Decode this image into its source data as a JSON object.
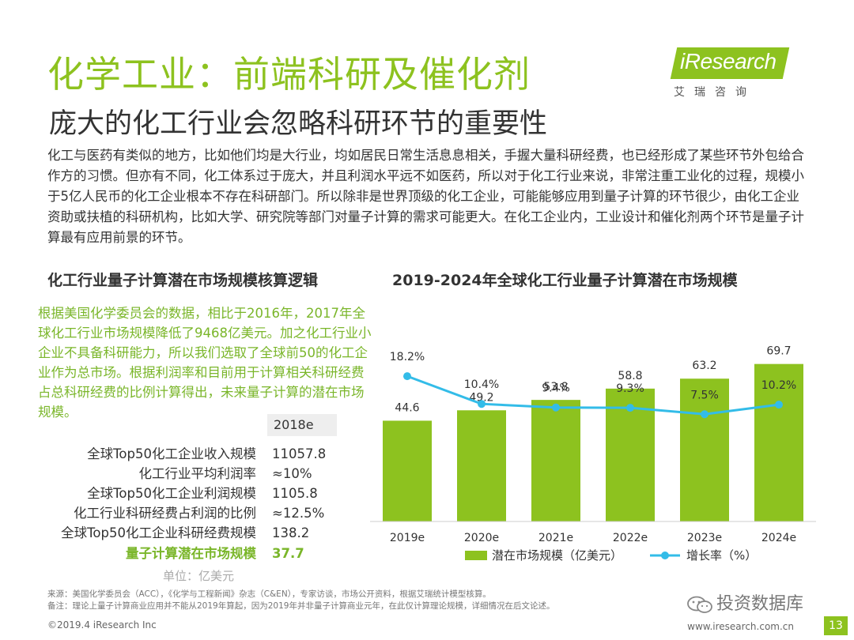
{
  "header": {
    "title": "化学工业：前端科研及催化剂",
    "subtitle": "庞大的化工行业会忽略科研环节的重要性"
  },
  "logo": {
    "word": "iResearch",
    "cn": "艾瑞咨询"
  },
  "intro": "化工与医药有类似的地方，比如他们均是大行业，均如居民日常生活息息相关，手握大量科研经费，也已经形成了某些环节外包给合作方的习惯。但亦有不同，化工体系过于庞大，并且利润水平远不如医药，所以对于化工行业来说，非常注重工业化的过程，规模小于5亿人民币的化工企业根本不存在科研部门。所以除非是世界顶级的化工企业，可能能够应用到量子计算的环节很少，由化工企业资助或扶植的科研机构，比如大学、研究院等部门对量子计算的需求可能更大。在化工企业内，工业设计和催化剂两个环节是量子计算最有应用前景的环节。",
  "left": {
    "heading": "化工行业量子计算潜在市场规模核算逻辑",
    "green_text": "根据美国化学委员会的数据，相比于2016年，2017年全球化工行业市场规模降低了9468亿美元。加之化工行业小企业不具备科研能力，所以我们选取了全球前50的化工企业作为总市场。根据利润率和目前用于计算相关科研经费占总科研经费的比例计算得出，未来量子计算的潜在市场规模。",
    "col_header": "2018e",
    "rows": [
      {
        "label": "全球Top50化工企业收入规模",
        "value": "11057.8"
      },
      {
        "label": "化工行业平均利润率",
        "value": "≈10%"
      },
      {
        "label": "全球Top50化工企业利润规模",
        "value": "1105.8"
      },
      {
        "label": "化工行业科研经费占利润的比例",
        "value": "≈12.5%"
      },
      {
        "label": "全球Top50化工企业科研经费规模",
        "value": "138.2"
      },
      {
        "label": "量子计算潜在市场规模",
        "value": "37.7"
      }
    ],
    "unit": "单位：亿美元"
  },
  "chart_data": {
    "type": "bar",
    "title": "2019-2024年全球化工行业量子计算潜在市场规模",
    "categories": [
      "2019e",
      "2020e",
      "2021e",
      "2022e",
      "2023e",
      "2024e"
    ],
    "series": [
      {
        "name": "潜在市场规模（亿美元）",
        "type": "bar",
        "values": [
          44.6,
          49.2,
          53.8,
          58.8,
          63.2,
          69.7
        ],
        "labels": [
          "44.6",
          "49.2",
          "53.8",
          "58.8",
          "63.2",
          "69.7"
        ],
        "color": "#8dc21f"
      },
      {
        "name": "增长率（%）",
        "type": "line",
        "values": [
          18.2,
          10.4,
          9.4,
          9.3,
          7.5,
          10.2
        ],
        "labels": [
          "18.2%",
          "10.4%",
          "9.4%",
          "9.3%",
          "7.5%",
          "10.2%"
        ],
        "color": "#33bce8"
      }
    ],
    "grid": false,
    "legend": "bottom"
  },
  "footer": {
    "source": "来源：美国化学委员会（ACC），《化学与工程新闻》杂志（C&EN），专家访谈，市场公开资料，根据艾瑞统计模型核算。",
    "note": "备注：理论上量子计算商业应用并不能从2019年算起，因为2019年并非量子计算商业元年，在此仅计算理论规模，详细情况在后文论述。",
    "copyright": "©2019.4 iResearch Inc",
    "site": "www.iresearch.com.cn",
    "page": "13",
    "watermark": "投资数据库"
  }
}
